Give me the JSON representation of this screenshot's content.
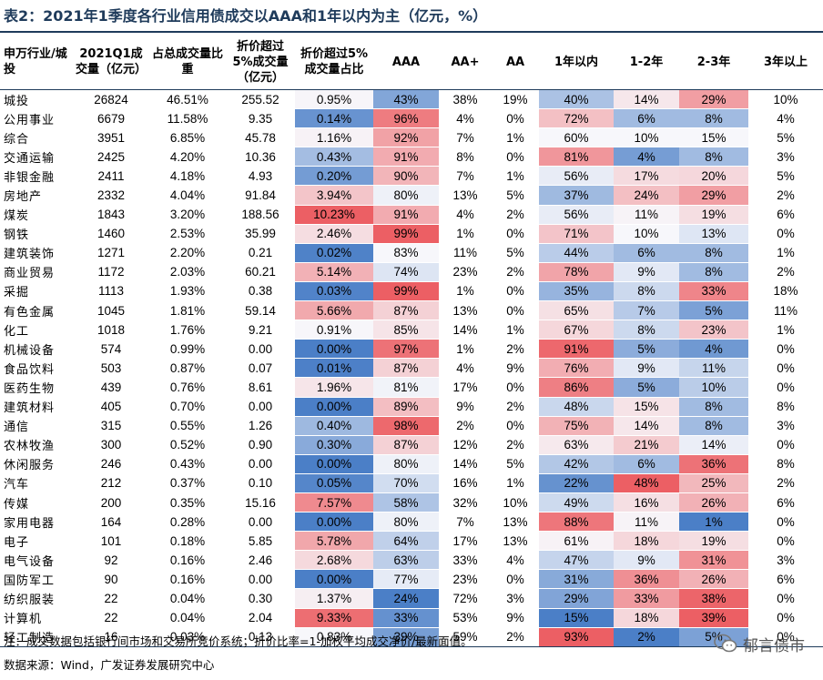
{
  "title": "表2：2021年1季度各行业信用债成交以AAA和1年以内为主（亿元，%）",
  "headers": [
    "申万行业/城投",
    "2021Q1成交量（亿元）",
    "占总成交量比重",
    "折价超过5%成交量（亿元）",
    "折价超过5%成交量占比",
    "AAA",
    "AA+",
    "AA",
    "1年以内",
    "1-2年",
    "2-3年",
    "3年以上"
  ],
  "heat_columns": [
    4,
    5,
    8,
    9,
    10
  ],
  "heat_colors": {
    "low": "#4b7fc7",
    "mid": "#f7f7fb",
    "high": "#ec5f64"
  },
  "rows": [
    [
      "城投",
      "26824",
      "46.51%",
      "255.52",
      "0.95%",
      "43%",
      "38%",
      "19%",
      "40%",
      "14%",
      "29%",
      "10%"
    ],
    [
      "公用事业",
      "6679",
      "11.58%",
      "9.35",
      "0.14%",
      "96%",
      "4%",
      "0%",
      "72%",
      "6%",
      "8%",
      "4%"
    ],
    [
      "综合",
      "3951",
      "6.85%",
      "45.78",
      "1.16%",
      "92%",
      "7%",
      "1%",
      "60%",
      "10%",
      "15%",
      "5%"
    ],
    [
      "交通运输",
      "2425",
      "4.20%",
      "10.36",
      "0.43%",
      "91%",
      "8%",
      "0%",
      "81%",
      "4%",
      "8%",
      "3%"
    ],
    [
      "非银金融",
      "2411",
      "4.18%",
      "4.93",
      "0.20%",
      "90%",
      "7%",
      "1%",
      "56%",
      "17%",
      "20%",
      "5%"
    ],
    [
      "房地产",
      "2332",
      "4.04%",
      "91.84",
      "3.94%",
      "80%",
      "13%",
      "5%",
      "37%",
      "24%",
      "29%",
      "2%"
    ],
    [
      "煤炭",
      "1843",
      "3.20%",
      "188.56",
      "10.23%",
      "91%",
      "4%",
      "2%",
      "56%",
      "11%",
      "19%",
      "6%"
    ],
    [
      "钢铁",
      "1460",
      "2.53%",
      "35.99",
      "2.46%",
      "99%",
      "1%",
      "0%",
      "71%",
      "10%",
      "13%",
      "0%"
    ],
    [
      "建筑装饰",
      "1271",
      "2.20%",
      "0.21",
      "0.02%",
      "83%",
      "11%",
      "5%",
      "44%",
      "6%",
      "8%",
      "1%"
    ],
    [
      "商业贸易",
      "1172",
      "2.03%",
      "60.21",
      "5.14%",
      "74%",
      "23%",
      "2%",
      "78%",
      "9%",
      "8%",
      "2%"
    ],
    [
      "采掘",
      "1113",
      "1.93%",
      "0.38",
      "0.03%",
      "99%",
      "1%",
      "0%",
      "35%",
      "8%",
      "33%",
      "18%"
    ],
    [
      "有色金属",
      "1045",
      "1.81%",
      "59.14",
      "5.66%",
      "87%",
      "13%",
      "0%",
      "65%",
      "7%",
      "5%",
      "11%"
    ],
    [
      "化工",
      "1018",
      "1.76%",
      "9.21",
      "0.91%",
      "85%",
      "14%",
      "1%",
      "67%",
      "8%",
      "23%",
      "1%"
    ],
    [
      "机械设备",
      "574",
      "0.99%",
      "0.00",
      "0.00%",
      "97%",
      "1%",
      "2%",
      "91%",
      "5%",
      "4%",
      "0%"
    ],
    [
      "食品饮料",
      "503",
      "0.87%",
      "0.07",
      "0.01%",
      "87%",
      "4%",
      "9%",
      "76%",
      "9%",
      "11%",
      "0%"
    ],
    [
      "医药生物",
      "439",
      "0.76%",
      "8.61",
      "1.96%",
      "81%",
      "17%",
      "0%",
      "86%",
      "5%",
      "10%",
      "0%"
    ],
    [
      "建筑材料",
      "405",
      "0.70%",
      "0.00",
      "0.00%",
      "89%",
      "9%",
      "2%",
      "48%",
      "15%",
      "8%",
      "8%"
    ],
    [
      "通信",
      "315",
      "0.55%",
      "1.26",
      "0.40%",
      "98%",
      "2%",
      "0%",
      "75%",
      "14%",
      "8%",
      "3%"
    ],
    [
      "农林牧渔",
      "300",
      "0.52%",
      "0.90",
      "0.30%",
      "87%",
      "12%",
      "2%",
      "63%",
      "21%",
      "14%",
      "0%"
    ],
    [
      "休闲服务",
      "246",
      "0.43%",
      "0.00",
      "0.00%",
      "80%",
      "14%",
      "5%",
      "42%",
      "6%",
      "36%",
      "8%"
    ],
    [
      "汽车",
      "212",
      "0.37%",
      "0.10",
      "0.05%",
      "70%",
      "16%",
      "1%",
      "22%",
      "48%",
      "25%",
      "2%"
    ],
    [
      "传媒",
      "200",
      "0.35%",
      "15.16",
      "7.57%",
      "58%",
      "32%",
      "10%",
      "49%",
      "16%",
      "26%",
      "6%"
    ],
    [
      "家用电器",
      "164",
      "0.28%",
      "0.00",
      "0.00%",
      "80%",
      "7%",
      "13%",
      "88%",
      "11%",
      "1%",
      "0%"
    ],
    [
      "电子",
      "101",
      "0.18%",
      "5.85",
      "5.78%",
      "64%",
      "17%",
      "13%",
      "61%",
      "18%",
      "19%",
      "0%"
    ],
    [
      "电气设备",
      "92",
      "0.16%",
      "2.46",
      "2.68%",
      "63%",
      "33%",
      "4%",
      "47%",
      "9%",
      "31%",
      "3%"
    ],
    [
      "国防军工",
      "90",
      "0.16%",
      "0.00",
      "0.00%",
      "77%",
      "23%",
      "0%",
      "31%",
      "36%",
      "26%",
      "6%"
    ],
    [
      "纺织服装",
      "22",
      "0.04%",
      "0.30",
      "1.37%",
      "24%",
      "72%",
      "3%",
      "29%",
      "33%",
      "38%",
      "0%"
    ],
    [
      "计算机",
      "22",
      "0.04%",
      "2.04",
      "9.33%",
      "33%",
      "53%",
      "9%",
      "15%",
      "18%",
      "39%",
      "0%"
    ],
    [
      "轻工制造",
      "16",
      "0.03%",
      "0.13",
      "0.83%",
      "39%",
      "59%",
      "2%",
      "93%",
      "2%",
      "5%",
      "0%"
    ]
  ],
  "note": "注：成交数据包括银行间市场和交易所竞价系统；折价比率=1-加权平均成交净价/最新面值。",
  "source": "数据来源：Wind，广发证券发展研究中心",
  "watermark": {
    "icon": "wechat-icon",
    "text": "郁言债市"
  }
}
